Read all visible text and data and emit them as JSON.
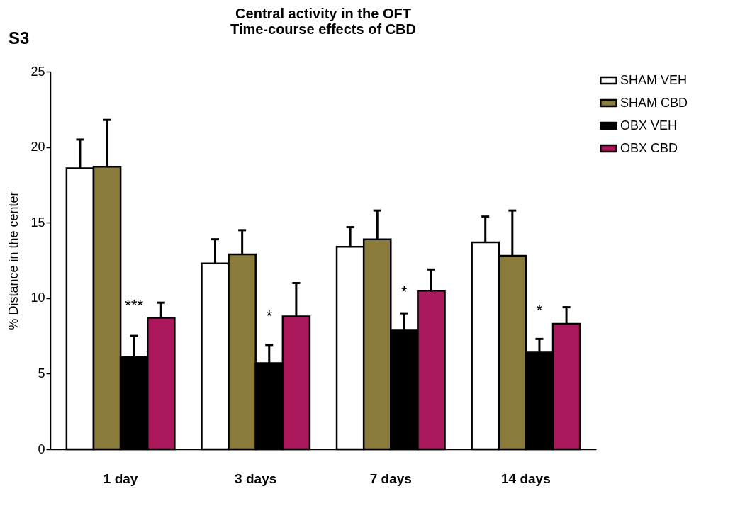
{
  "chart_data": {
    "type": "bar",
    "title": "Central activity in the OFT\nTime-course effects of CBD",
    "ylabel": "% Distance in the center",
    "categories": [
      "1 day",
      "3 days",
      "7 days",
      "14 days"
    ],
    "series": [
      {
        "name": "SHAM VEH",
        "color": "#ffffff",
        "values": [
          18.6,
          12.3,
          13.4,
          13.7
        ],
        "errors": [
          [
            18.6,
            20.5
          ],
          [
            12.3,
            13.9
          ],
          [
            13.4,
            14.7
          ],
          [
            13.7,
            15.4
          ]
        ]
      },
      {
        "name": "SHAM CBD",
        "color": "#8b7b3a",
        "values": [
          18.7,
          12.9,
          13.9,
          12.8
        ],
        "errors": [
          [
            18.7,
            21.8
          ],
          [
            12.9,
            14.5
          ],
          [
            13.9,
            15.8
          ],
          [
            12.8,
            15.8
          ]
        ]
      },
      {
        "name": "OBX VEH",
        "color": "#000000",
        "values": [
          6.1,
          5.7,
          7.9,
          6.4
        ],
        "errors": [
          [
            6.1,
            7.5
          ],
          [
            5.7,
            6.9
          ],
          [
            7.9,
            9.0
          ],
          [
            6.4,
            7.3
          ]
        ]
      },
      {
        "name": "OBX CBD",
        "color": "#ab195c",
        "values": [
          8.7,
          8.8,
          10.5,
          8.3
        ],
        "errors": [
          [
            8.7,
            9.7
          ],
          [
            8.8,
            11.0
          ],
          [
            10.5,
            11.9
          ],
          [
            8.3,
            9.4
          ]
        ]
      }
    ],
    "ylim": [
      0,
      25
    ],
    "yticks": [
      0,
      5,
      10,
      15,
      20,
      25
    ],
    "grid": false,
    "legend": "top right",
    "annotations": [
      "S3",
      {
        "text": "***",
        "x": "1 day",
        "y": 9.5
      },
      {
        "text": "*",
        "x": "3 days",
        "y": 8.8
      },
      {
        "text": "*",
        "x": "7 days",
        "y": 10.4
      },
      {
        "text": "*",
        "x": "14 days",
        "y": 9.2
      }
    ]
  }
}
